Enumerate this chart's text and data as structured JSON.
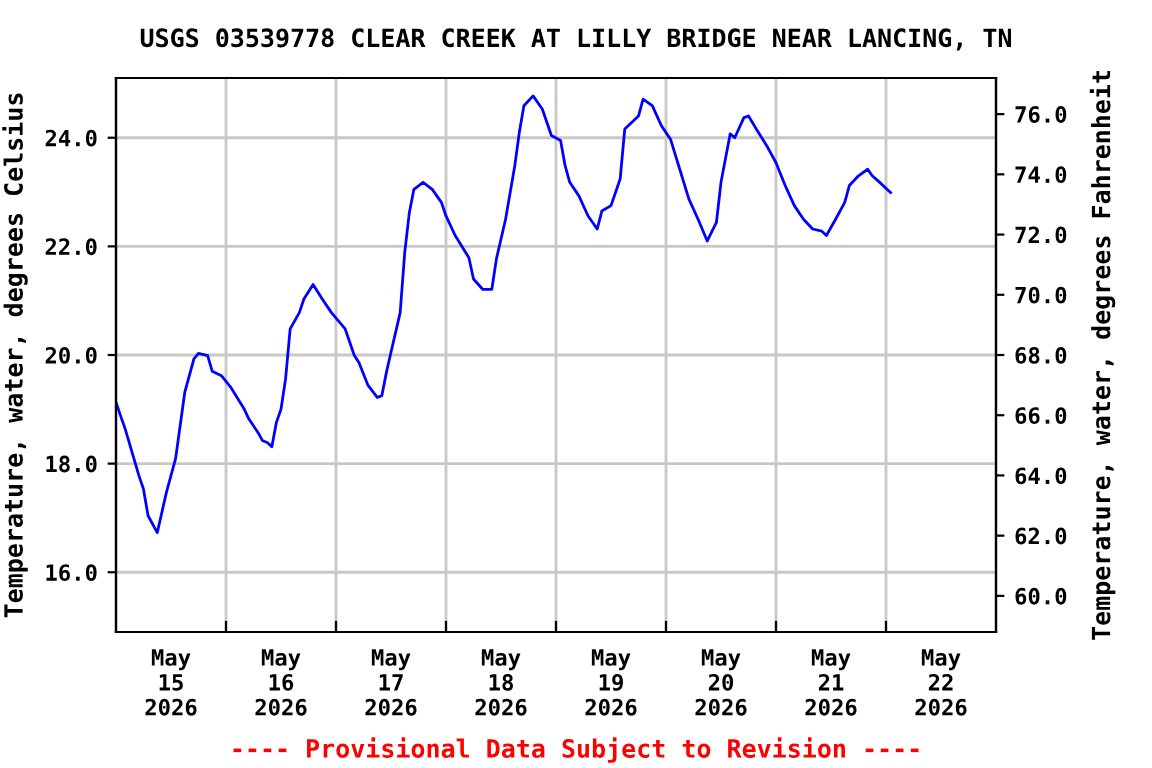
{
  "chart_data": {
    "type": "line",
    "title": "USGS 03539778 CLEAR CREEK AT LILLY BRIDGE NEAR LANCING, TN",
    "ylabel": "Temperature, water, degrees Celsius",
    "y2label": "Temperature, water, degrees Fahrenheit",
    "annotations": [
      "---- Provisional Data Subject to Revision ----"
    ],
    "x": [
      "2026-05-15T00:00",
      "2026-05-15T01:00",
      "2026-05-15T02:00",
      "2026-05-15T05:00",
      "2026-05-15T06:00",
      "2026-05-15T07:00",
      "2026-05-15T09:00",
      "2026-05-15T11:00",
      "2026-05-15T13:00",
      "2026-05-15T15:00",
      "2026-05-15T17:00",
      "2026-05-15T18:00",
      "2026-05-15T20:00",
      "2026-05-15T21:00",
      "2026-05-15T23:00",
      "2026-05-16T01:00",
      "2026-05-16T04:00",
      "2026-05-16T05:00",
      "2026-05-16T07:00",
      "2026-05-16T08:00",
      "2026-05-16T09:00",
      "2026-05-16T10:00",
      "2026-05-16T11:00",
      "2026-05-16T12:00",
      "2026-05-16T13:00",
      "2026-05-16T14:00",
      "2026-05-16T16:00",
      "2026-05-16T17:00",
      "2026-05-16T19:00",
      "2026-05-16T21:00",
      "2026-05-16T23:00",
      "2026-05-17T02:00",
      "2026-05-17T04:00",
      "2026-05-17T05:00",
      "2026-05-17T07:00",
      "2026-05-17T09:00",
      "2026-05-17T10:00",
      "2026-05-17T11:00",
      "2026-05-17T12:00",
      "2026-05-17T14:00",
      "2026-05-17T15:00",
      "2026-05-17T16:00",
      "2026-05-17T17:00",
      "2026-05-17T19:00",
      "2026-05-17T21:00",
      "2026-05-17T23:00",
      "2026-05-18T00:00",
      "2026-05-18T02:00",
      "2026-05-18T05:00",
      "2026-05-18T06:00",
      "2026-05-18T08:00",
      "2026-05-18T10:00",
      "2026-05-18T11:00",
      "2026-05-18T13:00",
      "2026-05-18T15:00",
      "2026-05-18T16:00",
      "2026-05-18T17:00",
      "2026-05-18T19:00",
      "2026-05-18T21:00",
      "2026-05-18T23:00",
      "2026-05-19T01:00",
      "2026-05-19T02:00",
      "2026-05-19T03:00",
      "2026-05-19T05:00",
      "2026-05-19T07:00",
      "2026-05-19T09:00",
      "2026-05-19T10:00",
      "2026-05-19T12:00",
      "2026-05-19T14:00",
      "2026-05-19T15:00",
      "2026-05-19T18:00",
      "2026-05-19T19:00",
      "2026-05-19T21:00",
      "2026-05-19T23:00",
      "2026-05-20T01:00",
      "2026-05-20T03:00",
      "2026-05-20T05:00",
      "2026-05-20T07:00",
      "2026-05-20T09:00",
      "2026-05-20T11:00",
      "2026-05-20T12:00",
      "2026-05-20T14:00",
      "2026-05-20T15:00",
      "2026-05-20T17:00",
      "2026-05-20T18:00",
      "2026-05-20T20:00",
      "2026-05-20T22:00",
      "2026-05-21T00:00",
      "2026-05-21T02:00",
      "2026-05-21T04:00",
      "2026-05-21T06:00",
      "2026-05-21T08:00",
      "2026-05-21T10:00",
      "2026-05-21T11:00",
      "2026-05-21T13:00",
      "2026-05-21T15:00",
      "2026-05-21T16:00",
      "2026-05-21T18:00",
      "2026-05-21T20:00",
      "2026-05-21T21:00",
      "2026-05-21T23:00",
      "2026-05-22T01:00"
    ],
    "series": [
      {
        "color": "#0000ff",
        "values": [
          19.13,
          18.88,
          18.64,
          17.78,
          17.53,
          17.04,
          16.73,
          17.47,
          18.09,
          19.31,
          19.93,
          20.03,
          19.99,
          19.7,
          19.62,
          19.41,
          19.0,
          18.82,
          18.57,
          18.42,
          18.39,
          18.31,
          18.76,
          19.0,
          19.56,
          20.48,
          20.78,
          21.03,
          21.3,
          21.03,
          20.78,
          20.48,
          19.99,
          19.86,
          19.44,
          19.22,
          19.25,
          19.68,
          20.05,
          20.78,
          21.89,
          22.62,
          23.05,
          23.18,
          23.05,
          22.81,
          22.56,
          22.2,
          21.79,
          21.4,
          21.21,
          21.21,
          21.77,
          22.5,
          23.48,
          24.1,
          24.59,
          24.77,
          24.53,
          24.04,
          23.95,
          23.48,
          23.18,
          22.93,
          22.56,
          22.32,
          22.65,
          22.75,
          23.24,
          24.16,
          24.4,
          24.71,
          24.59,
          24.22,
          23.97,
          23.42,
          22.87,
          22.5,
          22.1,
          22.44,
          23.18,
          24.07,
          24.0,
          24.37,
          24.4,
          24.12,
          23.85,
          23.54,
          23.12,
          22.75,
          22.5,
          22.32,
          22.28,
          22.2,
          22.5,
          22.81,
          23.12,
          23.3,
          23.42,
          23.3,
          23.15,
          22.99
        ]
      }
    ],
    "xlim": [
      "2026-05-15T00:00",
      "2026-05-23T00:00"
    ],
    "xticks": [
      {
        "value": "2026-05-15T12:00",
        "label": "May\n15\n2026"
      },
      {
        "value": "2026-05-16T00:00",
        "label": null
      },
      {
        "value": "2026-05-16T12:00",
        "label": "May\n16\n2026"
      },
      {
        "value": "2026-05-17T00:00",
        "label": null
      },
      {
        "value": "2026-05-17T12:00",
        "label": "May\n17\n2026"
      },
      {
        "value": "2026-05-18T00:00",
        "label": null
      },
      {
        "value": "2026-05-18T12:00",
        "label": "May\n18\n2026"
      },
      {
        "value": "2026-05-19T00:00",
        "label": null
      },
      {
        "value": "2026-05-19T12:00",
        "label": "May\n19\n2026"
      },
      {
        "value": "2026-05-20T00:00",
        "label": null
      },
      {
        "value": "2026-05-20T12:00",
        "label": "May\n20\n2026"
      },
      {
        "value": "2026-05-21T00:00",
        "label": null
      },
      {
        "value": "2026-05-21T12:00",
        "label": "May\n21\n2026"
      },
      {
        "value": "2026-05-22T00:00",
        "label": null
      },
      {
        "value": "2026-05-22T12:00",
        "label": "May\n22\n2026"
      }
    ],
    "ylim": [
      14.9,
      25.1
    ],
    "yticks": [
      {
        "value": 16,
        "label": "16.0"
      },
      {
        "value": 18,
        "label": "18.0"
      },
      {
        "value": 20,
        "label": "20.0"
      },
      {
        "value": 22,
        "label": "22.0"
      },
      {
        "value": 24,
        "label": "24.0"
      }
    ],
    "y2lim": [
      58.8,
      77.2
    ],
    "y2ticks": [
      {
        "value": 60,
        "label": "60.0"
      },
      {
        "value": 62,
        "label": "62.0"
      },
      {
        "value": 64,
        "label": "64.0"
      },
      {
        "value": 66,
        "label": "66.0"
      },
      {
        "value": 68,
        "label": "68.0"
      },
      {
        "value": 70,
        "label": "70.0"
      },
      {
        "value": 72,
        "label": "72.0"
      },
      {
        "value": 74,
        "label": "74.0"
      },
      {
        "value": 76,
        "label": "76.0"
      }
    ],
    "grid": true,
    "line_style": "solid",
    "marker": "none"
  }
}
